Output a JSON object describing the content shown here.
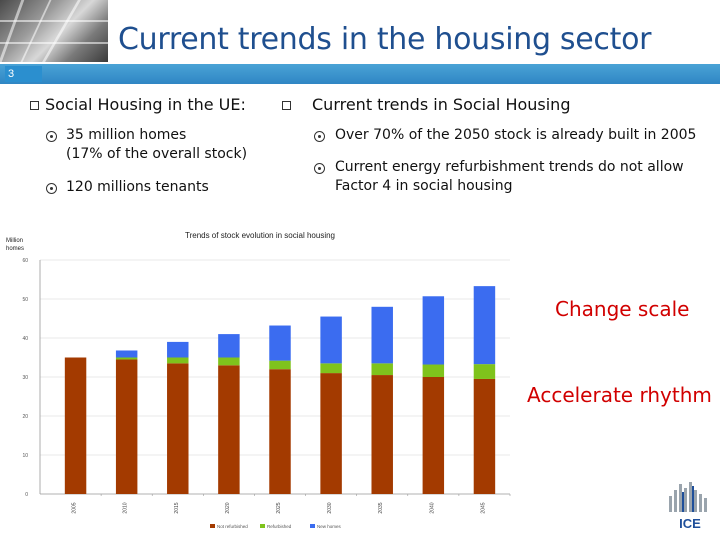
{
  "slide": {
    "number": "3",
    "title": "Current trends in the housing sector"
  },
  "left_column": {
    "heading": "Social Housing in the UE:",
    "items": [
      {
        "line1": "35 million homes",
        "line2": "(17% of the overall stock)"
      },
      {
        "line1": "120 millions tenants",
        "line2": ""
      }
    ]
  },
  "right_column": {
    "heading": "Current trends in Social Housing",
    "items": [
      {
        "line1": "Over 70% of the 2050 stock is already built in 2005",
        "line2": ""
      },
      {
        "line1": "Current energy refurbishment trends do not allow",
        "line2": "Factor 4 in social housing"
      }
    ]
  },
  "callouts": {
    "change_scale": "Change scale",
    "accelerate_rhythm": "Accelerate rhythm"
  },
  "logo": {
    "text": "ICE"
  },
  "colors": {
    "title": "#1f4f8f",
    "strip": "#2f86c4",
    "callout": "#d10000",
    "series_not_refurbished": "#a33a00",
    "series_refurbished": "#7fc31c",
    "series_new": "#3b6cf0"
  },
  "chart_data": {
    "type": "bar",
    "stacked": true,
    "title": "Trends of stock evolution in social housing",
    "ylabel": "Million homes",
    "ylim": [
      0,
      60
    ],
    "yticks": [
      "0",
      "10",
      "20",
      "30",
      "40",
      "50",
      "60"
    ],
    "categories": [
      "2005",
      "2010",
      "2015",
      "2020",
      "2025",
      "2030",
      "2035",
      "2040",
      "2045"
    ],
    "series": [
      {
        "name": "Not refurbished",
        "values": [
          35,
          34.5,
          33.5,
          33,
          32,
          31,
          30.5,
          30,
          29.5
        ]
      },
      {
        "name": "Refurbished",
        "values": [
          0,
          0.5,
          1.5,
          2,
          2.2,
          2.5,
          3,
          3.2,
          3.8
        ]
      },
      {
        "name": "New homes",
        "values": [
          0,
          1.8,
          4,
          6,
          9,
          12,
          14.5,
          17.5,
          20
        ]
      }
    ],
    "grid": true,
    "legend": "bottom"
  }
}
